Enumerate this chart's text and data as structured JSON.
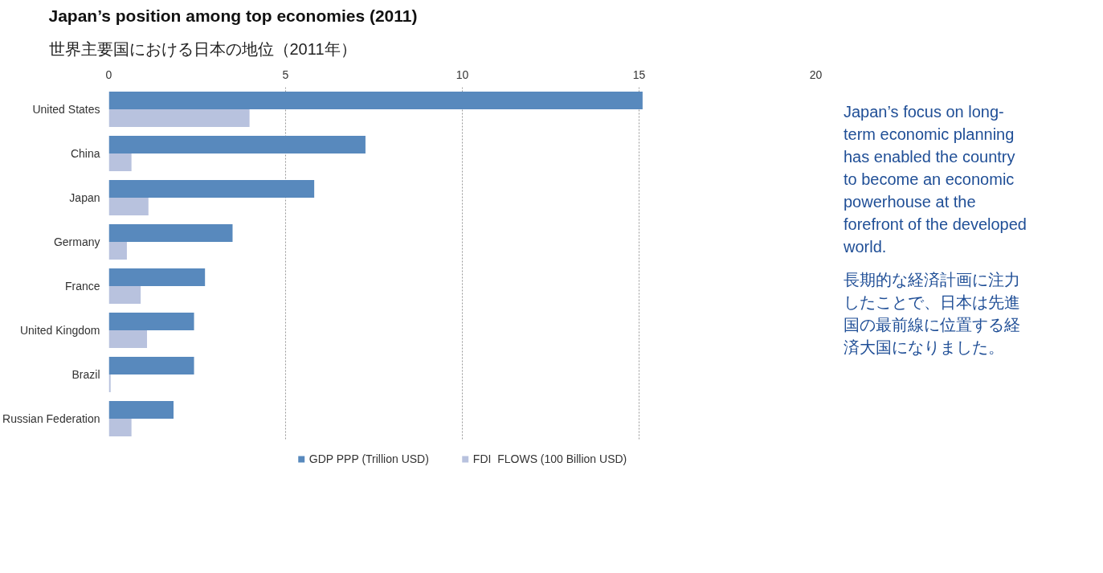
{
  "chart_data": {
    "type": "bar",
    "orientation": "horizontal",
    "title": "Japan’s position among top economies (2011)",
    "subtitle": "世界主要国における日本の地位（2011年）",
    "categories": [
      "United States",
      "China",
      "Japan",
      "Germany",
      "France",
      "United Kingdom",
      "Brazil",
      "Russian Federation"
    ],
    "series": [
      {
        "name": "GDP PPP (Trillion USD)",
        "color": "#5889bd",
        "values": [
          15.1,
          7.26,
          5.81,
          3.5,
          2.72,
          2.41,
          2.41,
          1.83
        ]
      },
      {
        "name": "FDI  FLOWS (100 Billion USD)",
        "color": "#b8c2de",
        "values": [
          3.98,
          0.64,
          1.12,
          0.51,
          0.9,
          1.08,
          0.05,
          0.64
        ]
      }
    ],
    "xlim": [
      0,
      20
    ],
    "xticks": [
      0,
      5,
      10,
      15,
      20
    ],
    "grid": "x",
    "legend": "bottom",
    "annotations": [
      "Japan’s focus on long-term economic planning has enabled the country to become an economic powerhouse at the forefront of the developed world.",
      "長期的な経済計画に注力したことで、日本は先進国の最前線に位置する経済大国になりました。"
    ]
  }
}
